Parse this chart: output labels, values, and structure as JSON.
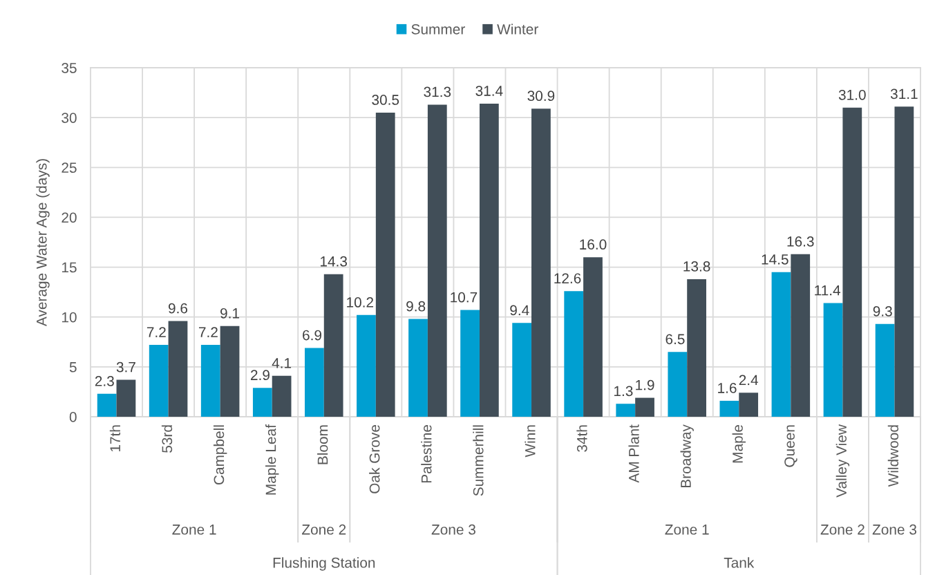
{
  "chart_data": {
    "type": "bar",
    "ylabel": "Average Water Age (days)",
    "categories": [
      "17th",
      "53rd",
      "Campbell",
      "Maple Leaf",
      "Bloom",
      "Oak Grove",
      "Palestine",
      "Summerhill",
      "Winn",
      "34th",
      "AM Plant",
      "Broadway",
      "Maple",
      "Queen",
      "Valley View",
      "Wildwood"
    ],
    "series": [
      {
        "name": "Summer",
        "color": "#009fd1",
        "values": [
          2.3,
          7.2,
          7.2,
          2.9,
          6.9,
          10.2,
          9.8,
          10.7,
          9.4,
          12.6,
          1.3,
          6.5,
          1.6,
          14.5,
          11.4,
          9.3
        ],
        "value_labels": [
          "2.3",
          "7.2",
          "7.2",
          "2.9",
          "6.9",
          "10.2",
          "9.8",
          "10.7",
          "9.4",
          "12.6",
          "1.3",
          "6.5",
          "1.6",
          "14.5",
          "11.4",
          "9.3"
        ]
      },
      {
        "name": "Winter",
        "color": "#414e58",
        "values": [
          3.7,
          9.6,
          9.1,
          4.1,
          14.3,
          30.5,
          31.3,
          31.4,
          30.9,
          16.0,
          1.9,
          13.8,
          2.4,
          16.3,
          31.0,
          31.1
        ],
        "value_labels": [
          "3.7",
          "9.6",
          "9.1",
          "4.1",
          "14.3",
          "30.5",
          "31.3",
          "31.4",
          "30.9",
          "16.0",
          "1.9",
          "13.8",
          "2.4",
          "16.3",
          "31.0",
          "31.1"
        ]
      }
    ],
    "ylim": [
      0,
      35
    ],
    "yticks": [
      0,
      5,
      10,
      15,
      20,
      25,
      30,
      35
    ],
    "grid": true,
    "legend": "top",
    "annotations": [
      "Zone 1",
      "Zone 2",
      "Zone 3",
      "Zone 1",
      "Zone 2",
      "Zone 3",
      "Flushing Station",
      "Tank"
    ]
  }
}
